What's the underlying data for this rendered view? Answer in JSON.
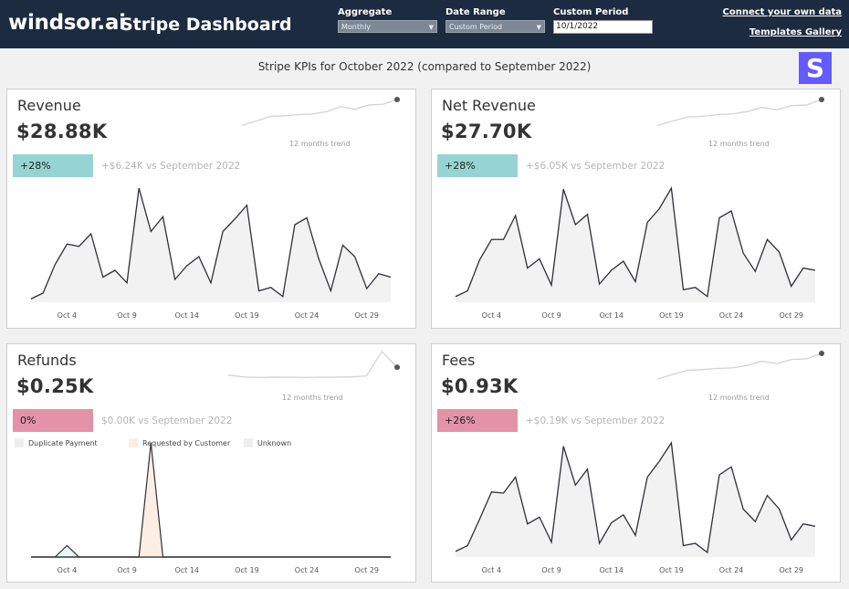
{
  "header": {
    "logo": "windsor.ai",
    "title": "Stripe Dashboard",
    "aggregate_label": "Aggregate",
    "aggregate_value": "Monthly",
    "date_range_label": "Date Range",
    "date_range_value": "Custom Period",
    "custom_period_label": "Custom Period",
    "custom_period_value": "10/1/2022",
    "connect_link": "Connect your own data",
    "templates_link": "Templates Gallery"
  },
  "subtitle": "Stripe KPIs for October 2022 (compared to September 2022)",
  "stripe_logo": "S",
  "trend_label": "12 months trend",
  "x_ticks": [
    "Oct 4",
    "Oct 9",
    "Oct 14",
    "Oct 19",
    "Oct 24",
    "Oct 29"
  ],
  "colors": {
    "header": "#1c2b3f",
    "badge_up": "#96d4d3",
    "badge_down": "#e392a8",
    "line": "#2f2f37",
    "area": "#f2f2f2",
    "stripe": "#635bff"
  },
  "cards": {
    "revenue": {
      "title": "Revenue",
      "value": "$28.88K",
      "badge": "+28%",
      "vs": "+$6.24K vs September 2022"
    },
    "net_revenue": {
      "title": "Net Revenue",
      "value": "$27.70K",
      "badge": "+28%",
      "vs": "+$6.05K vs September 2022"
    },
    "refunds": {
      "title": "Refunds",
      "value": "$0.25K",
      "badge": "0%",
      "vs": "$0.00K vs September 2022",
      "legend": [
        "Duplicate Payment",
        "Requested by Customer",
        "Unknown"
      ]
    },
    "fees": {
      "title": "Fees",
      "value": "$0.93K",
      "badge": "+26%",
      "vs": "+$0.19K vs September 2022"
    }
  },
  "chart_data": [
    {
      "type": "area",
      "title": "Revenue",
      "x": [
        "Oct 1",
        "Oct 2",
        "Oct 3",
        "Oct 4",
        "Oct 5",
        "Oct 6",
        "Oct 7",
        "Oct 8",
        "Oct 9",
        "Oct 10",
        "Oct 11",
        "Oct 12",
        "Oct 13",
        "Oct 14",
        "Oct 15",
        "Oct 16",
        "Oct 17",
        "Oct 18",
        "Oct 19",
        "Oct 20",
        "Oct 21",
        "Oct 22",
        "Oct 23",
        "Oct 24",
        "Oct 25",
        "Oct 26",
        "Oct 27",
        "Oct 28",
        "Oct 29",
        "Oct 30",
        "Oct 31"
      ],
      "values": [
        3,
        8,
        33,
        51,
        49,
        60,
        22,
        28,
        17,
        100,
        62,
        75,
        20,
        32,
        40,
        17,
        62,
        73,
        85,
        10,
        13,
        5,
        68,
        74,
        38,
        10,
        50,
        40,
        12,
        25,
        22
      ],
      "ylim": [
        0,
        100
      ],
      "note": "values normalized to daily peak (=100)"
    },
    {
      "type": "area",
      "title": "Net Revenue",
      "values": [
        5,
        10,
        37,
        55,
        55,
        76,
        30,
        38,
        15,
        99,
        68,
        77,
        16,
        28,
        36,
        18,
        70,
        82,
        100,
        11,
        13,
        5,
        74,
        80,
        43,
        27,
        55,
        44,
        14,
        30,
        28
      ],
      "ylim": [
        0,
        100
      ],
      "note": "values normalized to daily peak (=100)"
    },
    {
      "type": "area",
      "title": "Refunds",
      "series": [
        {
          "name": "Duplicate Payment",
          "values": [
            0,
            0,
            0,
            10,
            0,
            0,
            0,
            0,
            0,
            0,
            0,
            0,
            0,
            0,
            0,
            0,
            0,
            0,
            0,
            0,
            0,
            0,
            0,
            0,
            0,
            0,
            0,
            0,
            0,
            0,
            0
          ]
        },
        {
          "name": "Requested by Customer",
          "values": [
            0,
            0,
            0,
            0,
            0,
            0,
            0,
            0,
            0,
            0,
            100,
            0,
            0,
            0,
            0,
            0,
            0,
            0,
            0,
            0,
            0,
            0,
            0,
            0,
            0,
            0,
            0,
            0,
            0,
            0,
            0
          ]
        },
        {
          "name": "Unknown",
          "values": [
            0,
            0,
            0,
            0,
            0,
            0,
            0,
            0,
            0,
            0,
            0,
            0,
            0,
            0,
            0,
            0,
            0,
            0,
            0,
            0,
            0,
            0,
            0,
            0,
            0,
            0,
            0,
            0,
            0,
            0,
            0
          ]
        }
      ],
      "ylim": [
        0,
        100
      ]
    },
    {
      "type": "area",
      "title": "Fees",
      "values": [
        5,
        10,
        33,
        57,
        56,
        70,
        29,
        35,
        13,
        97,
        63,
        77,
        12,
        30,
        37,
        19,
        70,
        84,
        100,
        10,
        12,
        4,
        72,
        79,
        42,
        31,
        54,
        42,
        15,
        29,
        27
      ],
      "ylim": [
        0,
        100
      ],
      "note": "values normalized to daily peak (=100)"
    },
    {
      "type": "line",
      "title": "Revenue 12 months trend",
      "values": [
        14,
        28,
        44,
        46,
        50,
        52,
        60,
        76,
        68,
        82,
        84,
        100
      ],
      "ylim": [
        0,
        100
      ]
    },
    {
      "type": "line",
      "title": "Net Revenue 12 months trend",
      "values": [
        14,
        28,
        42,
        44,
        50,
        52,
        60,
        74,
        66,
        80,
        82,
        100
      ],
      "ylim": [
        0,
        100
      ]
    },
    {
      "type": "line",
      "title": "Refunds 12 months trend",
      "values": [
        22,
        16,
        14,
        15,
        15,
        14,
        15,
        15,
        16,
        19,
        100,
        48
      ],
      "ylim": [
        0,
        100
      ]
    },
    {
      "type": "line",
      "title": "Fees 12 months trend",
      "values": [
        14,
        30,
        44,
        46,
        50,
        52,
        60,
        74,
        66,
        80,
        82,
        100
      ],
      "ylim": [
        0,
        100
      ]
    }
  ]
}
